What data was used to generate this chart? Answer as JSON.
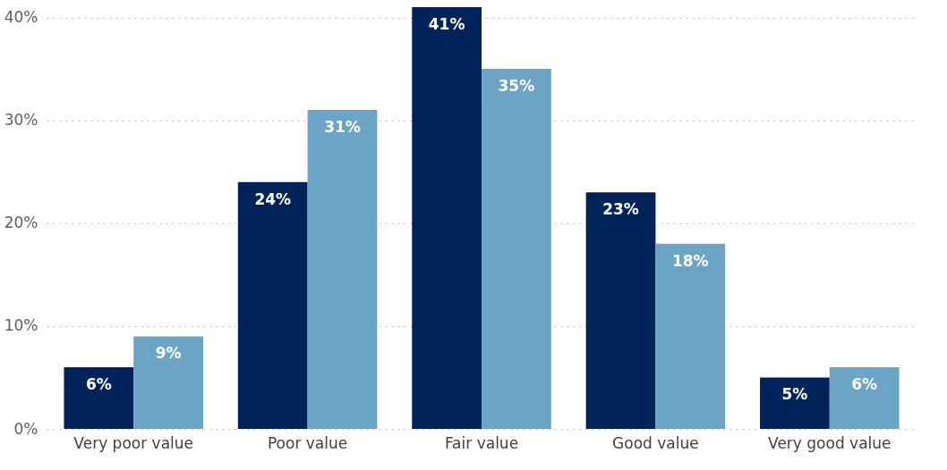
{
  "chart_data": {
    "type": "bar",
    "categories": [
      "Very poor value",
      "Poor value",
      "Fair value",
      "Good value",
      "Very good value"
    ],
    "series": [
      {
        "color": "#00245a",
        "values": [
          6,
          24,
          41,
          23,
          5
        ],
        "value_labels": [
          "6%",
          "24%",
          "41%",
          "23%",
          "5%"
        ]
      },
      {
        "color": "#6ca4c5",
        "values": [
          9,
          31,
          35,
          18,
          6
        ],
        "value_labels": [
          "9%",
          "31%",
          "35%",
          "18%",
          "6%"
        ]
      }
    ],
    "ylim": [
      0,
      41
    ],
    "yticks": [
      {
        "value": 0,
        "label": "0%"
      },
      {
        "value": 10,
        "label": "10%"
      },
      {
        "value": 20,
        "label": "20%"
      },
      {
        "value": 30,
        "label": "30%"
      },
      {
        "value": 40,
        "label": "40%"
      }
    ],
    "grid": "y",
    "legend": false
  }
}
